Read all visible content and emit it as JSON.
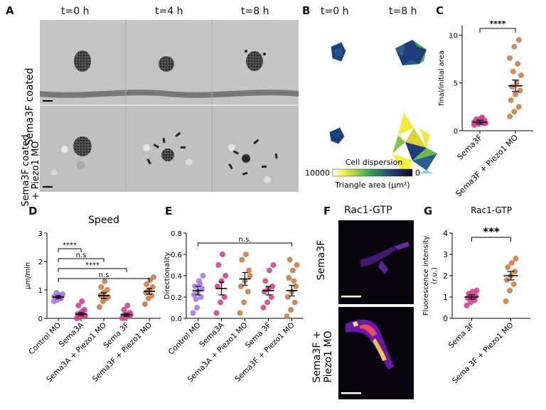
{
  "panel_letters": [
    "A",
    "B",
    "C",
    "D",
    "E",
    "F",
    "G"
  ],
  "panelA": {
    "times": [
      "t=0 h",
      "t=4 h",
      "t=8 h"
    ],
    "rows": [
      "Sema3F coated",
      "Sema3F coated\n+ Piezo1 MO"
    ],
    "row_labels": [
      "Sema3F coated",
      "Sema3F coated",
      "+ Piezo1 MO"
    ]
  },
  "panelB": {
    "times": [
      "t=0 h",
      "t=8 h"
    ],
    "colorbar_title": "Cell dispersion",
    "colorbar_left": "10000",
    "colorbar_right": "0",
    "colorbar_label": "Triangle area (μm²)"
  },
  "panelF": {
    "title": "Rac1-GTP",
    "rows": [
      "Sema3F",
      "Sema3F +",
      "Piezo1 MO"
    ]
  },
  "colors": {
    "control": "#a77be0",
    "sema3a": "#d0418f",
    "piezo": "#c8804f",
    "sema3f": "#c94a8e"
  },
  "chart_data": [
    {
      "id": "C",
      "type": "scatter",
      "title": "",
      "ylabel": "final/initial area",
      "ylim": [
        0,
        11
      ],
      "yticks": [
        0,
        5,
        10
      ],
      "categories": [
        "Sema3F",
        "Sema3F + Piezo1 MO"
      ],
      "means": [
        0.9,
        4.7
      ],
      "sem": [
        0.2,
        0.6
      ],
      "significance": "****",
      "points": [
        [
          0.6,
          0.7,
          0.8,
          0.9,
          1.0,
          1.1,
          1.2,
          1.3,
          0.8,
          1.0,
          1.4,
          0.9
        ],
        [
          1.5,
          2.0,
          2.5,
          3.2,
          3.8,
          4.2,
          4.6,
          5.0,
          5.8,
          6.2,
          7.0,
          7.6,
          8.8,
          9.5
        ]
      ]
    },
    {
      "id": "D",
      "type": "scatter",
      "title": "Speed",
      "ylabel": "μm/min",
      "ylim": [
        0,
        3
      ],
      "yticks": [
        0,
        1,
        2,
        3
      ],
      "categories": [
        "Control MO",
        "Sema3A",
        "Sema3A + Piezo1 MO",
        "Sema 3F",
        "Sema3F + Piezo1 MO"
      ],
      "means": [
        0.75,
        0.15,
        0.8,
        0.12,
        0.95
      ],
      "sem": [
        0.05,
        0.05,
        0.1,
        0.05,
        0.1
      ],
      "comparisons": [
        {
          "from": 0,
          "to": 1,
          "label": "****"
        },
        {
          "from": 0,
          "to": 2,
          "label": "n.s"
        },
        {
          "from": 0,
          "to": 3,
          "label": "****"
        },
        {
          "from": 0,
          "to": 4,
          "label": "n.s"
        }
      ],
      "points": [
        [
          0.6,
          0.65,
          0.7,
          0.72,
          0.75,
          0.78,
          0.8,
          0.82,
          0.85,
          0.9,
          0.7,
          0.76
        ],
        [
          0.0,
          0.05,
          0.1,
          0.15,
          0.2,
          0.3,
          0.45,
          0.6,
          0.1,
          0.05,
          0.25
        ],
        [
          0.4,
          0.6,
          0.7,
          0.8,
          0.9,
          1.0,
          1.1,
          1.3,
          0.75,
          0.85
        ],
        [
          0.0,
          0.05,
          0.08,
          0.1,
          0.15,
          0.2,
          0.3,
          0.45,
          0.12,
          0.02
        ],
        [
          0.5,
          0.7,
          0.8,
          0.9,
          1.0,
          1.1,
          1.2,
          1.35,
          1.45,
          0.95
        ]
      ]
    },
    {
      "id": "E",
      "type": "scatter",
      "title": "",
      "ylabel": "Directionality",
      "ylim": [
        0,
        0.8
      ],
      "yticks": [
        0.0,
        0.2,
        0.4,
        0.6,
        0.8
      ],
      "categories": [
        "Control MO",
        "Sema3A",
        "Sema3A + Piezo1 MO",
        "Sema 3F",
        "Sema3F + Piezo1 MO"
      ],
      "means": [
        0.26,
        0.28,
        0.37,
        0.26,
        0.26
      ],
      "sem": [
        0.04,
        0.06,
        0.06,
        0.04,
        0.05
      ],
      "comparisons": [
        {
          "from": 0,
          "to": 4,
          "label": "n.s."
        }
      ],
      "points": [
        [
          0.05,
          0.1,
          0.2,
          0.22,
          0.25,
          0.28,
          0.3,
          0.35,
          0.4,
          0.18,
          0.32
        ],
        [
          0.05,
          0.15,
          0.2,
          0.3,
          0.35,
          0.4,
          0.5,
          0.6
        ],
        [
          0.05,
          0.15,
          0.25,
          0.3,
          0.35,
          0.45,
          0.55,
          0.6,
          0.4
        ],
        [
          0.1,
          0.15,
          0.2,
          0.25,
          0.28,
          0.3,
          0.35,
          0.45,
          0.5
        ],
        [
          0.02,
          0.08,
          0.15,
          0.2,
          0.25,
          0.3,
          0.38,
          0.45,
          0.5,
          0.55,
          0.35
        ]
      ]
    },
    {
      "id": "G",
      "type": "scatter",
      "title": "Rac1-GTP",
      "ylabel": "Fluorescence intensity\n(r.u.)",
      "ylim": [
        0,
        4
      ],
      "yticks": [
        0,
        1,
        2,
        3,
        4
      ],
      "categories": [
        "Sema 3F",
        "Sema 3F + Piezo1 MO"
      ],
      "means": [
        1.0,
        2.0
      ],
      "sem": [
        0.1,
        0.2
      ],
      "significance": "***",
      "points": [
        [
          0.6,
          0.75,
          0.85,
          0.95,
          1.0,
          1.05,
          1.15,
          1.25,
          1.3
        ],
        [
          0.8,
          1.3,
          1.6,
          1.8,
          2.0,
          2.2,
          2.4,
          2.6,
          2.8
        ]
      ]
    }
  ]
}
